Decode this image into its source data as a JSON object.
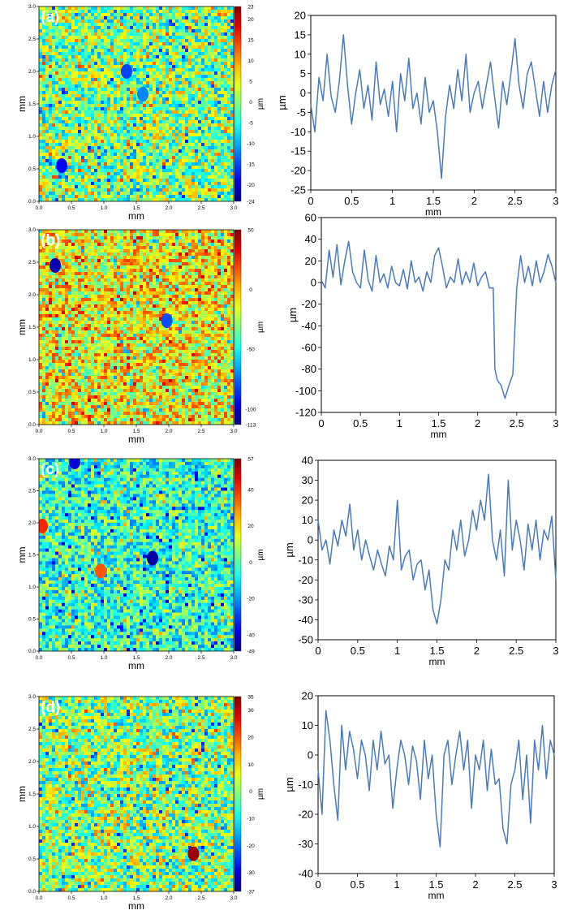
{
  "chart_data": [
    {
      "panel": "a",
      "type": "heatmap",
      "panel_label": "(a)",
      "xlabel": "mm",
      "ylabel": "mm",
      "xlim": [
        0,
        3
      ],
      "ylim": [
        0,
        3
      ],
      "xticks": [
        "0.0",
        "0.5",
        "1.0",
        "1.5",
        "2.0",
        "2.5",
        "3.0"
      ],
      "yticks": [
        "0.0",
        "0.5",
        "1.0",
        "1.5",
        "2.0",
        "2.5",
        "3.0"
      ],
      "colorbar": {
        "unit": "µm",
        "ticks": [
          "23",
          "20",
          "15",
          "10",
          "5",
          "0",
          "-5",
          "-10",
          "-15",
          "-20",
          "-24"
        ],
        "range": [
          -24,
          23
        ]
      },
      "features": [
        {
          "kind": "pit",
          "x": 0.35,
          "y": 0.55,
          "value": -18
        },
        {
          "kind": "pit",
          "x": 1.35,
          "y": 2.0,
          "value": -15
        },
        {
          "kind": "pit",
          "x": 1.6,
          "y": 1.65,
          "value": -12
        }
      ]
    },
    {
      "panel": "a",
      "type": "line",
      "xlabel": "mm",
      "ylabel": "µm",
      "xlim": [
        0,
        3
      ],
      "ylim": [
        -25,
        20
      ],
      "xticks": [
        "0",
        "0.5",
        "1",
        "1.5",
        "2",
        "2.5",
        "3"
      ],
      "yticks": [
        "20",
        "15",
        "10",
        "5",
        "0",
        "-5",
        "-10",
        "-15",
        "-20",
        "-25"
      ],
      "series": [
        {
          "x": [
            0,
            0.05,
            0.1,
            0.15,
            0.2,
            0.25,
            0.3,
            0.35,
            0.4,
            0.45,
            0.5,
            0.55,
            0.6,
            0.65,
            0.7,
            0.75,
            0.8,
            0.85,
            0.9,
            0.95,
            1,
            1.05,
            1.1,
            1.15,
            1.2,
            1.25,
            1.3,
            1.35,
            1.4,
            1.45,
            1.5,
            1.55,
            1.6,
            1.65,
            1.7,
            1.75,
            1.8,
            1.85,
            1.9,
            1.95,
            2,
            2.05,
            2.1,
            2.15,
            2.2,
            2.25,
            2.3,
            2.35,
            2.4,
            2.45,
            2.5,
            2.55,
            2.6,
            2.65,
            2.7,
            2.75,
            2.8,
            2.85,
            2.9,
            2.95,
            3
          ],
          "y": [
            -3,
            -10,
            4,
            -2,
            10,
            -1,
            -5,
            3,
            15,
            2,
            -8,
            0,
            6,
            -4,
            2,
            -7,
            8,
            -3,
            1,
            -6,
            3,
            -10,
            5,
            -2,
            9,
            -4,
            0,
            -8,
            4,
            -5,
            -2,
            -10,
            -22,
            -6,
            2,
            -4,
            6,
            -2,
            10,
            -5,
            0,
            3,
            -4,
            2,
            8,
            -1,
            -9,
            3,
            -3,
            5,
            14,
            2,
            -4,
            5,
            8,
            1,
            -6,
            3,
            -5,
            2,
            6
          ]
        }
      ]
    },
    {
      "panel": "b",
      "type": "heatmap",
      "panel_label": "(b)",
      "xlabel": "mm",
      "ylabel": "mm",
      "xlim": [
        0,
        3
      ],
      "ylim": [
        0,
        3
      ],
      "xticks": [
        "0.0",
        "0.5",
        "1.0",
        "1.5",
        "2.0",
        "2.5",
        "3.0"
      ],
      "yticks": [
        "0.0",
        "0.5",
        "1.0",
        "1.5",
        "2.0",
        "2.5",
        "3.0"
      ],
      "colorbar": {
        "unit": "µm",
        "ticks": [
          "50",
          "0",
          "-50",
          "-100",
          "-113"
        ],
        "range": [
          -113,
          50
        ]
      },
      "features": [
        {
          "kind": "pit",
          "x": 0.25,
          "y": 2.45,
          "value": -105
        },
        {
          "kind": "pit",
          "x": 1.97,
          "y": 1.6,
          "value": -80
        }
      ]
    },
    {
      "panel": "b",
      "type": "line",
      "xlabel": "mm",
      "ylabel": "µm",
      "xlim": [
        0,
        3
      ],
      "ylim": [
        -120,
        60
      ],
      "xticks": [
        "0",
        "0.5",
        "1",
        "1.5",
        "2",
        "2.5",
        "3"
      ],
      "yticks": [
        "60",
        "40",
        "20",
        "0",
        "-20",
        "-40",
        "-60",
        "-80",
        "-100",
        "-120"
      ],
      "series": [
        {
          "x": [
            0,
            0.05,
            0.1,
            0.15,
            0.2,
            0.25,
            0.3,
            0.35,
            0.4,
            0.45,
            0.5,
            0.55,
            0.6,
            0.65,
            0.7,
            0.75,
            0.8,
            0.85,
            0.9,
            0.95,
            1,
            1.05,
            1.1,
            1.15,
            1.2,
            1.25,
            1.3,
            1.35,
            1.4,
            1.45,
            1.5,
            1.55,
            1.6,
            1.65,
            1.7,
            1.75,
            1.8,
            1.85,
            1.9,
            1.95,
            2,
            2.05,
            2.1,
            2.15,
            2.2,
            2.22,
            2.25,
            2.3,
            2.35,
            2.4,
            2.45,
            2.5,
            2.55,
            2.6,
            2.65,
            2.7,
            2.75,
            2.8,
            2.85,
            2.9,
            2.95,
            3
          ],
          "y": [
            2,
            -5,
            30,
            5,
            35,
            -2,
            20,
            38,
            10,
            0,
            -5,
            30,
            2,
            -8,
            25,
            0,
            8,
            -5,
            15,
            0,
            -3,
            12,
            -6,
            20,
            0,
            5,
            -8,
            10,
            0,
            25,
            32,
            15,
            -5,
            5,
            0,
            22,
            -2,
            10,
            0,
            18,
            -3,
            5,
            10,
            -5,
            -5,
            -80,
            -90,
            -95,
            -107,
            -95,
            -85,
            -5,
            25,
            0,
            15,
            -3,
            20,
            0,
            10,
            26,
            15,
            0
          ]
        }
      ]
    },
    {
      "panel": "c",
      "type": "heatmap",
      "panel_label": "(c)",
      "xlabel": "mm",
      "ylabel": "mm",
      "xlim": [
        0,
        3
      ],
      "ylim": [
        0,
        3
      ],
      "xticks": [
        "0.0",
        "0.5",
        "1.0",
        "1.5",
        "2.0",
        "2.5",
        "3.0"
      ],
      "yticks": [
        "0.0",
        "0.5",
        "1.0",
        "1.5",
        "2.0",
        "2.5",
        "3.0"
      ],
      "colorbar": {
        "unit": "µm",
        "ticks": [
          "57",
          "40",
          "20",
          "0",
          "-20",
          "-40",
          "-49"
        ],
        "range": [
          -49,
          57
        ]
      },
      "features": [
        {
          "kind": "pit",
          "x": 1.75,
          "y": 1.45,
          "value": -45
        },
        {
          "kind": "pit",
          "x": 0.55,
          "y": 2.95,
          "value": -40
        },
        {
          "kind": "peak",
          "x": 0.05,
          "y": 1.95,
          "value": 40
        },
        {
          "kind": "peak",
          "x": 0.95,
          "y": 1.25,
          "value": 35
        }
      ]
    },
    {
      "panel": "c",
      "type": "line",
      "xlabel": "mm",
      "ylabel": "µm",
      "xlim": [
        0,
        3
      ],
      "ylim": [
        -50,
        40
      ],
      "xticks": [
        "0",
        "0.5",
        "1",
        "1.5",
        "2",
        "2.5",
        "3"
      ],
      "yticks": [
        "40",
        "30",
        "20",
        "10",
        "0",
        "-10",
        "-20",
        "-30",
        "-40",
        "-50"
      ],
      "series": [
        {
          "x": [
            0,
            0.05,
            0.1,
            0.15,
            0.2,
            0.25,
            0.3,
            0.35,
            0.4,
            0.45,
            0.5,
            0.55,
            0.6,
            0.65,
            0.7,
            0.75,
            0.8,
            0.85,
            0.9,
            0.95,
            1,
            1.05,
            1.1,
            1.15,
            1.2,
            1.25,
            1.3,
            1.35,
            1.4,
            1.45,
            1.5,
            1.55,
            1.6,
            1.65,
            1.7,
            1.75,
            1.8,
            1.85,
            1.9,
            1.95,
            2,
            2.05,
            2.1,
            2.15,
            2.2,
            2.25,
            2.3,
            2.35,
            2.4,
            2.45,
            2.5,
            2.55,
            2.6,
            2.65,
            2.7,
            2.75,
            2.8,
            2.85,
            2.9,
            2.95,
            3
          ],
          "y": [
            10,
            -5,
            0,
            -12,
            5,
            -3,
            10,
            2,
            18,
            -5,
            5,
            -10,
            0,
            -8,
            -15,
            -5,
            -12,
            -18,
            -3,
            -10,
            20,
            -15,
            -8,
            -5,
            -20,
            -12,
            -10,
            -25,
            -15,
            -35,
            -42,
            -30,
            -10,
            -15,
            5,
            -5,
            10,
            -8,
            0,
            15,
            5,
            20,
            10,
            33,
            0,
            -10,
            5,
            -18,
            30,
            -5,
            10,
            0,
            -15,
            8,
            -5,
            10,
            -10,
            5,
            0,
            12,
            -20
          ]
        }
      ]
    },
    {
      "panel": "d",
      "type": "heatmap",
      "panel_label": "(d)",
      "xlabel": "mm",
      "ylabel": "mm",
      "xlim": [
        0,
        3
      ],
      "ylim": [
        0,
        3
      ],
      "xticks": [
        "0.0",
        "0.5",
        "1.0",
        "1.5",
        "2.0",
        "2.5",
        "3.0"
      ],
      "yticks": [
        "0.0",
        "0.5",
        "1.0",
        "1.5",
        "2.0",
        "2.5",
        "3.0"
      ],
      "colorbar": {
        "unit": "µm",
        "ticks": [
          "35",
          "30",
          "20",
          "10",
          "0",
          "-10",
          "-20",
          "-30",
          "-37"
        ],
        "range": [
          -37,
          35
        ]
      },
      "features": [
        {
          "kind": "peak",
          "x": 2.38,
          "y": 0.58,
          "value": 33
        }
      ]
    },
    {
      "panel": "d",
      "type": "line",
      "xlabel": "mm",
      "ylabel": "µm",
      "xlim": [
        0,
        3
      ],
      "ylim": [
        -40,
        20
      ],
      "xticks": [
        "0",
        "0.5",
        "1",
        "1.5",
        "2",
        "2.5",
        "3"
      ],
      "yticks": [
        "20",
        "10",
        "0",
        "-10",
        "-20",
        "-30",
        "-40"
      ],
      "series": [
        {
          "x": [
            0,
            0.05,
            0.1,
            0.15,
            0.2,
            0.25,
            0.3,
            0.35,
            0.4,
            0.45,
            0.5,
            0.55,
            0.6,
            0.65,
            0.7,
            0.75,
            0.8,
            0.85,
            0.9,
            0.95,
            1,
            1.05,
            1.1,
            1.15,
            1.2,
            1.25,
            1.3,
            1.35,
            1.4,
            1.45,
            1.5,
            1.55,
            1.6,
            1.65,
            1.7,
            1.75,
            1.8,
            1.85,
            1.9,
            1.95,
            2,
            2.05,
            2.1,
            2.15,
            2.2,
            2.25,
            2.3,
            2.35,
            2.4,
            2.45,
            2.5,
            2.55,
            2.6,
            2.65,
            2.7,
            2.75,
            2.8,
            2.85,
            2.9,
            2.95,
            3
          ],
          "y": [
            -5,
            -20,
            15,
            5,
            -10,
            -22,
            10,
            -5,
            8,
            2,
            -8,
            5,
            0,
            -12,
            5,
            -5,
            8,
            -3,
            0,
            -18,
            -5,
            5,
            0,
            -10,
            3,
            -2,
            -15,
            5,
            -8,
            0,
            -20,
            -31,
            0,
            5,
            -10,
            0,
            8,
            -5,
            5,
            -18,
            0,
            -5,
            5,
            -12,
            2,
            -10,
            -8,
            -25,
            -30,
            -10,
            -5,
            5,
            -15,
            0,
            -23,
            5,
            -5,
            10,
            -8,
            5,
            0
          ]
        }
      ]
    }
  ]
}
